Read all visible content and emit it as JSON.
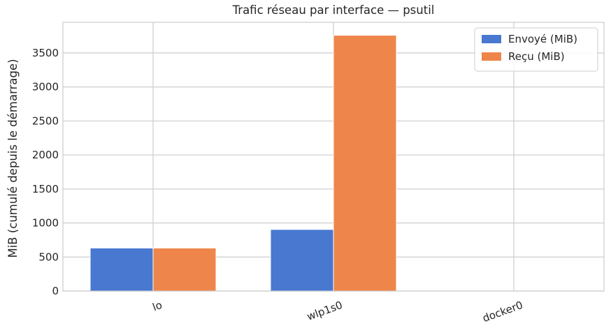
{
  "chart_data": {
    "type": "bar",
    "title": "Trafic réseau par interface — psutil",
    "xlabel": "",
    "ylabel": "MiB (cumulé depuis le démarrage)",
    "categories": [
      "lo",
      "wlp1s0",
      "docker0"
    ],
    "series": [
      {
        "name": "Envoyé (MiB)",
        "values": [
          632,
          905,
          0
        ],
        "color": "#4878d0"
      },
      {
        "name": "Reçu (MiB)",
        "values": [
          632,
          3760,
          0
        ],
        "color": "#ee854a"
      }
    ],
    "ylim": [
      0,
      3950
    ],
    "yticks": [
      0,
      500,
      1000,
      1500,
      2000,
      2500,
      3000,
      3500
    ],
    "grid": true,
    "legend_position": "top-right"
  }
}
